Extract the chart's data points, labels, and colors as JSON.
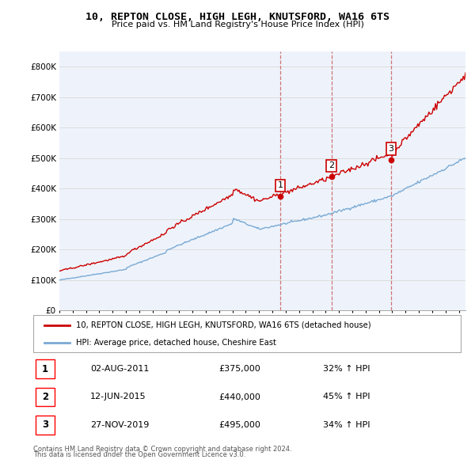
{
  "title": "10, REPTON CLOSE, HIGH LEGH, KNUTSFORD, WA16 6TS",
  "subtitle": "Price paid vs. HM Land Registry's House Price Index (HPI)",
  "legend_line1": "10, REPTON CLOSE, HIGH LEGH, KNUTSFORD, WA16 6TS (detached house)",
  "legend_line2": "HPI: Average price, detached house, Cheshire East",
  "footer1": "Contains HM Land Registry data © Crown copyright and database right 2024.",
  "footer2": "This data is licensed under the Open Government Licence v3.0.",
  "sale_labels": [
    "1",
    "2",
    "3"
  ],
  "sale_dates_display": [
    "02-AUG-2011",
    "12-JUN-2015",
    "27-NOV-2019"
  ],
  "sale_prices_display": [
    "£375,000",
    "£440,000",
    "£495,000"
  ],
  "sale_hpi_display": [
    "32% ↑ HPI",
    "45% ↑ HPI",
    "34% ↑ HPI"
  ],
  "sale_years": [
    2011.58,
    2015.44,
    2019.9
  ],
  "sale_prices": [
    375000,
    440000,
    495000
  ],
  "hpi_color": "#7aaad4",
  "price_color": "#cc0000",
  "dashed_line_color": "#cc6666",
  "ylim": [
    0,
    850000
  ],
  "xlim_start": 1995.0,
  "xlim_end": 2025.5,
  "yticks": [
    0,
    100000,
    200000,
    300000,
    400000,
    500000,
    600000,
    700000,
    800000
  ],
  "ytick_labels": [
    "£0",
    "£100K",
    "£200K",
    "£300K",
    "£400K",
    "£500K",
    "£600K",
    "£700K",
    "£800K"
  ],
  "background_color": "#ffffff",
  "grid_color": "#dddddd",
  "chart_bg": "#eef3fb"
}
